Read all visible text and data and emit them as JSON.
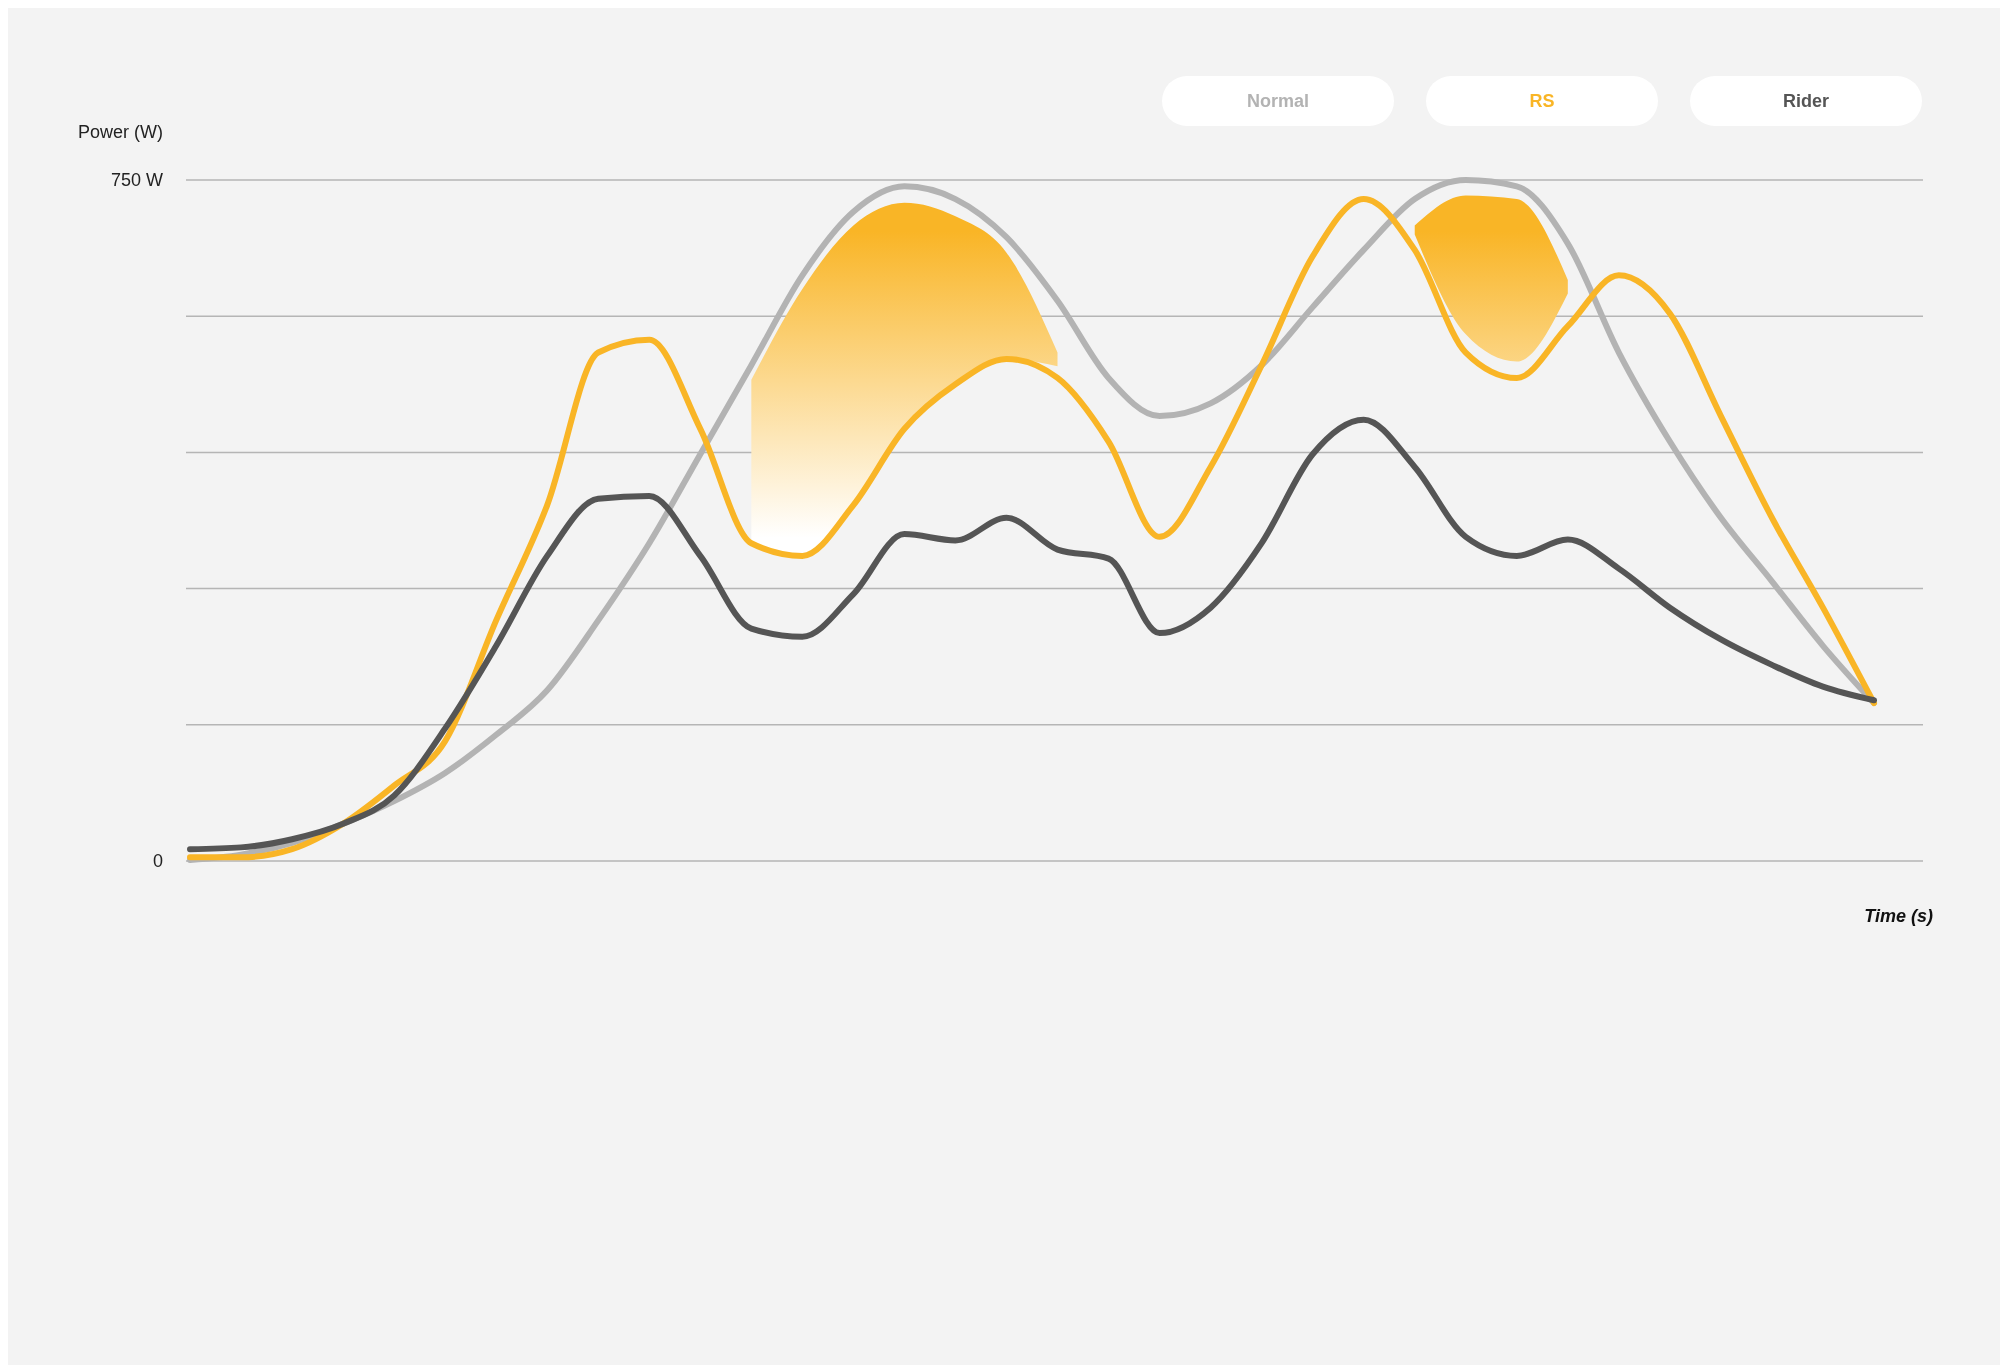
{
  "chart_data": {
    "type": "line",
    "xlabel": "Time (s)",
    "ylabel": "Power (W)",
    "categories": [
      null,
      null,
      null,
      null,
      null,
      null,
      null,
      null,
      null,
      null,
      null,
      null,
      null,
      null,
      null,
      null,
      null,
      null,
      null,
      null,
      null,
      null,
      null,
      null,
      null,
      null,
      null,
      null,
      null,
      null,
      null,
      null,
      null,
      null
    ],
    "ylim": [
      0,
      750
    ],
    "yticks": [
      0,
      {
        "value": 150,
        "label": null
      },
      {
        "value": 300,
        "label": null
      },
      {
        "value": 450,
        "label": null
      },
      {
        "value": 600,
        "label": null
      },
      {
        "value": 750,
        "label": "750 W"
      }
    ],
    "grid": "y",
    "legend": "top right",
    "tick_labels": "y",
    "marker": "none",
    "line_style": "solid",
    "series": [
      {
        "name": "Normal",
        "color": "#b3b3b3",
        "values": [
          1,
          7,
          20,
          41,
          66,
          97,
          139,
          188,
          265,
          350,
          448,
          546,
          645,
          715,
          743,
          729,
          687,
          617,
          532,
          490,
          504,
          546,
          610,
          673,
          729,
          750,
          743,
          680,
          560,
          462,
          378,
          308,
          237,
          174
        ]
      },
      {
        "name": "RS",
        "color": "#f9b526",
        "values": [
          4,
          4,
          13,
          41,
          83,
          132,
          265,
          392,
          560,
          574,
          476,
          350,
          336,
          392,
          476,
          525,
          553,
          532,
          462,
          357,
          434,
          546,
          666,
          729,
          673,
          560,
          532,
          589,
          645,
          603,
          490,
          378,
          279,
          174
        ],
        "lower": [
          null,
          null,
          null,
          null,
          null,
          null,
          null,
          null,
          null,
          null,
          null,
          350,
          336,
          392,
          476,
          525,
          553,
          545,
          null,
          null,
          null,
          null,
          null,
          null,
          690,
          580,
          550,
          625,
          null,
          null,
          null,
          null,
          null,
          null
        ],
        "upper": [
          null,
          null,
          null,
          null,
          null,
          null,
          null,
          null,
          null,
          null,
          null,
          530,
          630,
          700,
          725,
          710,
          670,
          560,
          null,
          null,
          null,
          null,
          null,
          null,
          700,
          733,
          729,
          640,
          null,
          null,
          null,
          null,
          null,
          null
        ]
      },
      {
        "name": "Rider",
        "color": "#555555",
        "values": [
          13,
          15,
          24,
          41,
          72,
          146,
          237,
          336,
          399,
          402,
          336,
          256,
          247,
          294,
          360,
          353,
          378,
          343,
          333,
          251,
          279,
          350,
          448,
          486,
          434,
          357,
          336,
          354,
          322,
          279,
          244,
          216,
          192,
          177
        ]
      }
    ]
  }
}
